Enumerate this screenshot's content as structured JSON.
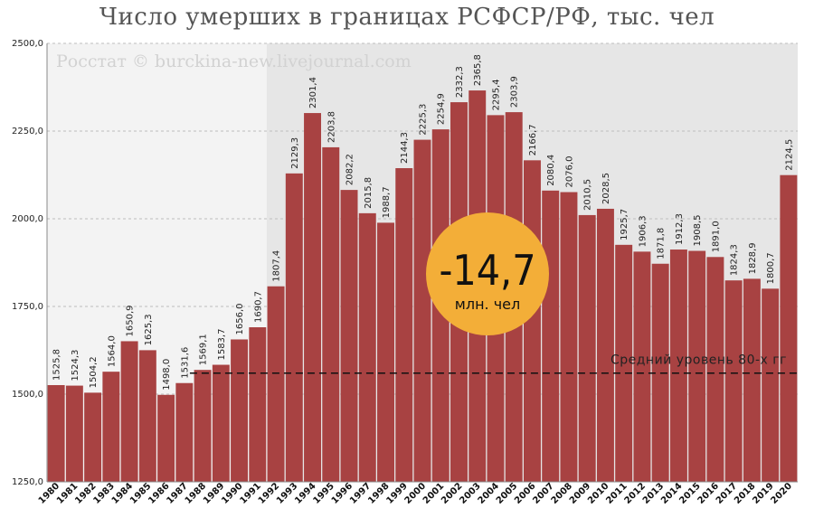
{
  "chart_data": {
    "type": "bar",
    "title": "Число умерших в границах РСФСР/РФ, тыс. чел",
    "watermark": "Росстат © burckina-new.livejournal.com",
    "categories": [
      "1980",
      "1981",
      "1982",
      "1983",
      "1984",
      "1985",
      "1986",
      "1987",
      "1988",
      "1989",
      "1990",
      "1991",
      "1992",
      "1993",
      "1994",
      "1995",
      "1996",
      "1997",
      "1998",
      "1999",
      "2000",
      "2001",
      "2002",
      "2003",
      "2004",
      "2005",
      "2006",
      "2007",
      "2008",
      "2009",
      "2010",
      "2011",
      "2012",
      "2013",
      "2014",
      "2015",
      "2016",
      "2017",
      "2018",
      "2019",
      "2020"
    ],
    "values": [
      1525.8,
      1524.3,
      1504.2,
      1564.0,
      1650.9,
      1625.3,
      1498.0,
      1531.6,
      1569.1,
      1583.7,
      1656.0,
      1690.7,
      1807.4,
      2129.3,
      2301.4,
      2203.8,
      2082.2,
      2015.8,
      1988.7,
      2144.3,
      2225.3,
      2254.9,
      2332.3,
      2365.8,
      2295.4,
      2303.9,
      2166.7,
      2080.4,
      2076.0,
      2010.5,
      2028.5,
      1925.7,
      1906.3,
      1871.8,
      1912.3,
      1908.5,
      1891.0,
      1824.3,
      1828.9,
      1800.7,
      2124.5
    ],
    "value_labels": [
      "1525,8",
      "1524,3",
      "1504,2",
      "1564,0",
      "1650,9",
      "1625,3",
      "1498,0",
      "1531,6",
      "1569,1",
      "1583,7",
      "1656,0",
      "1690,7",
      "1807,4",
      "2129,3",
      "2301,4",
      "2203,8",
      "2082,2",
      "2015,8",
      "1988,7",
      "2144,3",
      "2225,3",
      "2254,9",
      "2332,3",
      "2365,8",
      "2295,4",
      "2303,9",
      "2166,7",
      "2080,4",
      "2076,0",
      "2010,5",
      "2028,5",
      "1925,7",
      "1906,3",
      "1871,8",
      "1912,3",
      "1908,5",
      "1891,0",
      "1824,3",
      "1828,9",
      "1800,7",
      "2124,5"
    ],
    "ylim": [
      1250,
      2500
    ],
    "yticks": [
      1250,
      1500,
      1750,
      2000,
      2250,
      2500
    ],
    "ytick_labels": [
      "1250,0",
      "1500,0",
      "1750,0",
      "2000,0",
      "2250,0",
      "2500,0"
    ],
    "grid": true,
    "bar_color": "#a84242",
    "reference_line": {
      "value": 1560,
      "label": "Средний уровень 80-х гг"
    },
    "shaded_background_from": "1992",
    "badge": {
      "value": "-14,7",
      "unit": "млн. чел",
      "color": "#f3ae38"
    }
  }
}
